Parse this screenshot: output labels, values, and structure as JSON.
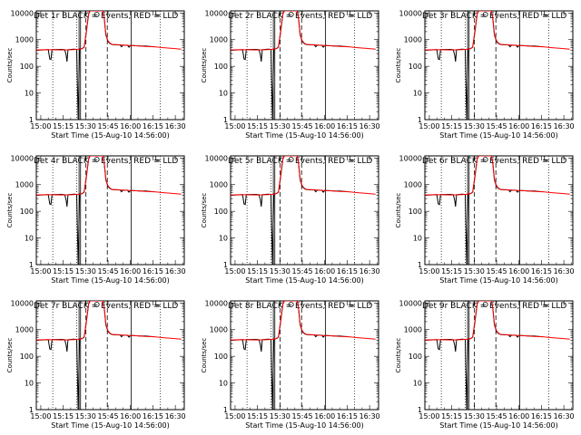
{
  "chart_data": {
    "type": "line",
    "shared": {
      "xlabel": "Start Time (15-Aug-10 14:56:00)",
      "ylabel": "Counts/sec",
      "x_ticks": [
        "15:00",
        "15:15",
        "15:30",
        "15:45",
        "16:00",
        "16:15",
        "16:30"
      ],
      "y_ticks": [
        "1",
        "10",
        "100",
        "1000",
        "10000"
      ],
      "y_scale": "log",
      "ylim": [
        1,
        12000
      ],
      "xlim_minutes": [
        -3,
        96
      ],
      "legend": "top-left, part of title",
      "series_colors": {
        "events": "#000000",
        "lld": "#ff0000"
      },
      "events_series": [
        [
          -3,
          400
        ],
        [
          5,
          420
        ],
        [
          6,
          190
        ],
        [
          6.8,
          180
        ],
        [
          7.5,
          420
        ],
        [
          14,
          430
        ],
        [
          16,
          420
        ],
        [
          17,
          260
        ],
        [
          17.5,
          150
        ],
        [
          18.2,
          420
        ],
        [
          22,
          440
        ],
        [
          24,
          430
        ],
        [
          25,
          1
        ],
        [
          26,
          450
        ],
        [
          27.5,
          460
        ],
        [
          29,
          520
        ],
        [
          30.5,
          2000
        ],
        [
          32,
          9000
        ],
        [
          33,
          12000
        ],
        [
          41.5,
          12000
        ],
        [
          42.5,
          6000
        ],
        [
          43.5,
          1500
        ],
        [
          45,
          850
        ],
        [
          46.5,
          700
        ],
        [
          48,
          650
        ],
        [
          50,
          640
        ],
        [
          53,
          630
        ],
        [
          54,
          540
        ],
        [
          55,
          620
        ],
        [
          58,
          620
        ],
        [
          59,
          520
        ],
        [
          60,
          600
        ],
        [
          62,
          600
        ],
        [
          66,
          580
        ],
        [
          70,
          580
        ],
        [
          73,
          560
        ],
        [
          76,
          540
        ]
      ],
      "lld_series": [
        [
          -3,
          410
        ],
        [
          4,
          420
        ],
        [
          10,
          415
        ],
        [
          16,
          410
        ],
        [
          22,
          420
        ],
        [
          26,
          440
        ],
        [
          28,
          470
        ],
        [
          29,
          540
        ],
        [
          30.5,
          2200
        ],
        [
          32,
          9500
        ],
        [
          33,
          12000
        ],
        [
          41.5,
          12000
        ],
        [
          42.5,
          6500
        ],
        [
          43.5,
          1600
        ],
        [
          45,
          900
        ],
        [
          46.5,
          720
        ],
        [
          48,
          660
        ],
        [
          52,
          640
        ],
        [
          56,
          620
        ],
        [
          60,
          600
        ],
        [
          64,
          590
        ],
        [
          70,
          560
        ],
        [
          76,
          540
        ],
        [
          82,
          500
        ],
        [
          88,
          470
        ],
        [
          94,
          440
        ]
      ],
      "vertical_lines": {
        "dotted_min": [
          8,
          24,
          80
        ],
        "dashed_min": [
          30.2,
          44.5
        ],
        "solid_double_min": [
          25.6,
          26.6
        ],
        "solid_single_min": [
          60.5
        ]
      },
      "flags": [
        {
          "min": 37.5,
          "shape": "circle"
        },
        {
          "min": 77,
          "shape": "notch"
        }
      ]
    },
    "panels": [
      {
        "title": "Det 1r BLACK = Events, RED = LLD"
      },
      {
        "title": "Det 2r BLACK = Events, RED = LLD"
      },
      {
        "title": "Det 3r BLACK = Events, RED = LLD"
      },
      {
        "title": "Det 4r BLACK = Events, RED = LLD"
      },
      {
        "title": "Det 5r BLACK = Events, RED = LLD"
      },
      {
        "title": "Det 6r BLACK = Events, RED = LLD"
      },
      {
        "title": "Det 7r BLACK = Events, RED = LLD"
      },
      {
        "title": "Det 8r BLACK = Events, RED = LLD"
      },
      {
        "title": "Det 9r BLACK = Events, RED = LLD"
      }
    ]
  }
}
